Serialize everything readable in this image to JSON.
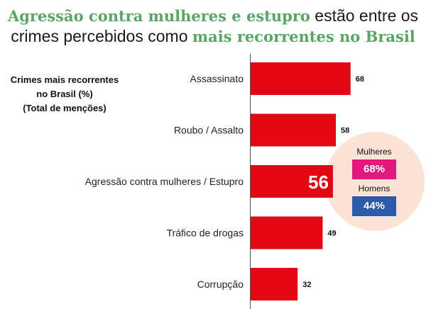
{
  "title": {
    "line1_highlight": "Agressão contra mulheres e estupro",
    "line1_rest": " estão entre os",
    "line2_start": "crimes percebidos como ",
    "line2_highlight": "mais recorrentes no Brasil"
  },
  "subtitle": {
    "line1": "Crimes mais recorrentes",
    "line2": "no Brasil (%)",
    "line3": "(Total de menções)"
  },
  "chart_data": {
    "type": "bar",
    "orientation": "horizontal",
    "categories": [
      "Assassinato",
      "Roubo / Assalto",
      "Agressão contra mulheres / Estupro",
      "Tráfico de drogas",
      "Corrupção"
    ],
    "values": [
      68,
      58,
      56,
      49,
      32
    ],
    "value_labels": [
      "68",
      "58",
      "56",
      "49",
      "32"
    ],
    "highlight_index": 2,
    "xlim": [
      0,
      100
    ],
    "bar_color": "#e30613",
    "label_color": "#111111",
    "highlight_label_color": "#ffffff"
  },
  "callout": {
    "women_label": "Mulheres",
    "women_value": "68%",
    "men_label": "Homens",
    "men_value": "44%"
  },
  "colors": {
    "accent_green": "#5aa566",
    "women": "#e0197d",
    "men": "#2d5aa8",
    "callout_bg": "#fbe3d6"
  }
}
